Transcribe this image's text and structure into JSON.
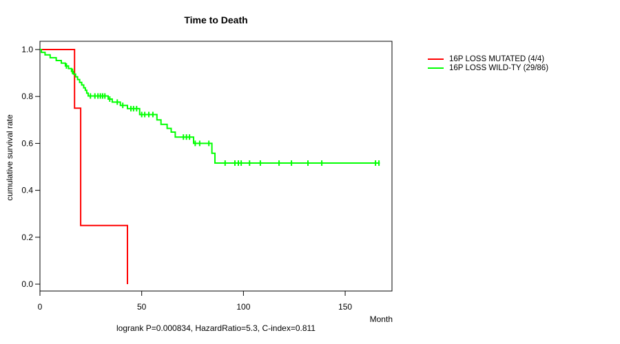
{
  "title": "Time to Death",
  "axes": {
    "ylabel": "cumulative survival rate",
    "xlabel": "Month"
  },
  "footer": "logrank P=0.000834, HazardRatio=5.3, C-index=0.811",
  "legend": {
    "items": [
      {
        "label": "16P LOSS MUTATED (4/4)",
        "color": "#ff0000"
      },
      {
        "label": "16P LOSS WILD-TY (29/86)",
        "color": "#00ff00"
      }
    ]
  },
  "chart_data": {
    "type": "line",
    "subtype": "kaplan-meier-step",
    "title": "Time to Death",
    "xlabel": "Month",
    "ylabel": "cumulative survival rate",
    "xlim": [
      0,
      173
    ],
    "ylim": [
      0,
      1
    ],
    "xticks": [
      0,
      50,
      100,
      150
    ],
    "yticks": [
      0.0,
      0.2,
      0.4,
      0.6,
      0.8,
      1.0
    ],
    "grid": false,
    "legend_position": "right-outside",
    "series": [
      {
        "name": "16P LOSS MUTATED (4/4)",
        "color": "#ff0000",
        "events": "4/4",
        "steps": [
          [
            0,
            1.0
          ],
          [
            17,
            0.75
          ],
          [
            20,
            0.25
          ],
          [
            43,
            0.0
          ]
        ],
        "end": 43,
        "censors": []
      },
      {
        "name": "16P LOSS WILD-TY (29/86)",
        "color": "#00ff00",
        "events": "29/86",
        "steps": [
          [
            0,
            1.0
          ],
          [
            0.7,
            0.988
          ],
          [
            2.5,
            0.977
          ],
          [
            5,
            0.965
          ],
          [
            8,
            0.953
          ],
          [
            10.5,
            0.942
          ],
          [
            12.5,
            0.93
          ],
          [
            14,
            0.919
          ],
          [
            15.5,
            0.907
          ],
          [
            16.5,
            0.895
          ],
          [
            17.5,
            0.884
          ],
          [
            18.5,
            0.872
          ],
          [
            19.5,
            0.86
          ],
          [
            20.5,
            0.849
          ],
          [
            21.5,
            0.837
          ],
          [
            22.3,
            0.826
          ],
          [
            23,
            0.814
          ],
          [
            23.7,
            0.802
          ],
          [
            33.5,
            0.789
          ],
          [
            35.5,
            0.776
          ],
          [
            39.5,
            0.762
          ],
          [
            43,
            0.748
          ],
          [
            49,
            0.723
          ],
          [
            57.5,
            0.7
          ],
          [
            59.5,
            0.681
          ],
          [
            62.5,
            0.664
          ],
          [
            64.5,
            0.648
          ],
          [
            66.5,
            0.627
          ],
          [
            75.5,
            0.6
          ],
          [
            84.5,
            0.558
          ],
          [
            86,
            0.516
          ]
        ],
        "end": 167,
        "censors": [
          13,
          16,
          24.8,
          27,
          28.5,
          29.7,
          30.8,
          31.9,
          34.3,
          38,
          40.7,
          44.7,
          46,
          47.5,
          50,
          51.5,
          53.5,
          55.5,
          70.5,
          72,
          73.5,
          76.3,
          78.5,
          83,
          91,
          95.8,
          97.5,
          98.9,
          103,
          108.3,
          117.5,
          123.6,
          131.7,
          138.5,
          164.9,
          166.6
        ]
      }
    ]
  }
}
